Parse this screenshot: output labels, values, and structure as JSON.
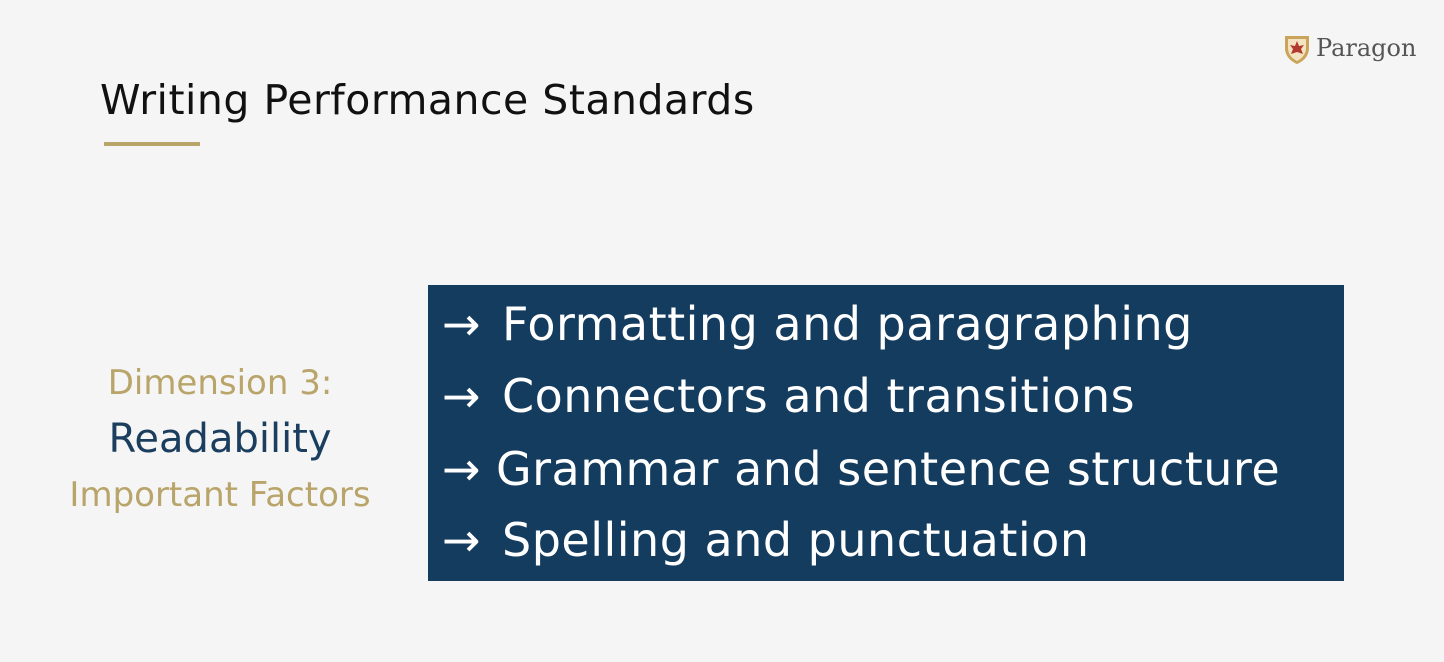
{
  "slide": {
    "title": "Writing Performance Standards",
    "logo": {
      "icon": "paragon-crest-icon",
      "text": "Paragon"
    },
    "side": {
      "dimension": "Dimension 3:",
      "name": "Readability",
      "subtitle": "Important Factors"
    },
    "items": [
      {
        "arrow": "→",
        "label": "Formatting and paragraphing"
      },
      {
        "arrow": "→",
        "label": "Connectors and transitions"
      },
      {
        "arrow": "→",
        "label": "Grammar and sentence structure"
      },
      {
        "arrow": "→",
        "label": "Spelling and punctuation"
      }
    ],
    "colors": {
      "accent_gold": "#b9a46a",
      "navy": "#143c5f",
      "background": "#f5f5f6"
    }
  }
}
